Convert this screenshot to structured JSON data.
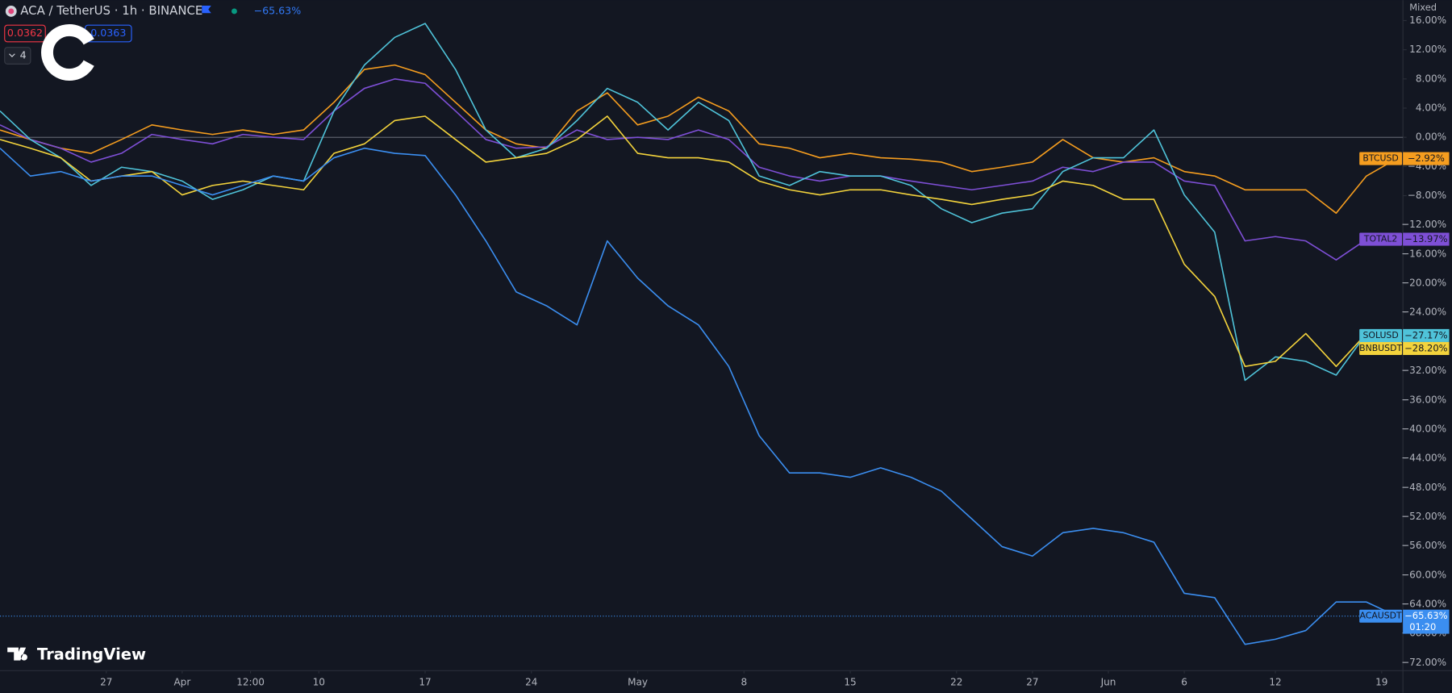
{
  "chart_data": {
    "type": "line",
    "title": "ACA / TetherUS · 1h · BINANCE",
    "change_label": "−65.63%",
    "bid": "0.0362",
    "ask": "0.0363",
    "indicator_count": "4",
    "scale_mode": "Mixed",
    "brand": "TradingView",
    "countdown": "01:20",
    "x": [
      0,
      2,
      4,
      6,
      8,
      10,
      12,
      14,
      16,
      18,
      20,
      22,
      24,
      26,
      28,
      30,
      32,
      34,
      36,
      38,
      40,
      42,
      44,
      46,
      48,
      50,
      52,
      54,
      56,
      58,
      60,
      62,
      64,
      66,
      68,
      70,
      72,
      74,
      76,
      78,
      80,
      82,
      84,
      86,
      88,
      90,
      92
    ],
    "xlim": [
      0,
      92.4
    ],
    "xticks": [
      {
        "value": 7,
        "label": "27"
      },
      {
        "value": 12,
        "label": "Apr"
      },
      {
        "value": 16.5,
        "label": "12:00"
      },
      {
        "value": 21,
        "label": "10"
      },
      {
        "value": 28,
        "label": "17"
      },
      {
        "value": 35,
        "label": "24"
      },
      {
        "value": 42,
        "label": "May"
      },
      {
        "value": 49,
        "label": "8"
      },
      {
        "value": 56,
        "label": "15"
      },
      {
        "value": 63,
        "label": "22"
      },
      {
        "value": 68,
        "label": "27"
      },
      {
        "value": 73,
        "label": "Jun"
      },
      {
        "value": 78,
        "label": "6"
      },
      {
        "value": 84,
        "label": "12"
      },
      {
        "value": 91,
        "label": "19"
      }
    ],
    "ylim": [
      -73.1,
      18.8
    ],
    "yticks": [
      {
        "value": 16,
        "label": "16.00%"
      },
      {
        "value": 12,
        "label": "12.00%"
      },
      {
        "value": 8,
        "label": "8.00%"
      },
      {
        "value": 4,
        "label": "4.00%"
      },
      {
        "value": 0,
        "label": "0.00%"
      },
      {
        "value": -4,
        "label": "−4.00%"
      },
      {
        "value": -8,
        "label": "−8.00%"
      },
      {
        "value": -12,
        "label": "−12.00%"
      },
      {
        "value": -16,
        "label": "−16.00%"
      },
      {
        "value": -20,
        "label": "−20.00%"
      },
      {
        "value": -24,
        "label": "−24.00%"
      },
      {
        "value": -28,
        "label": "−28.00%"
      },
      {
        "value": -32,
        "label": "−32.00%"
      },
      {
        "value": -36,
        "label": "−36.00%"
      },
      {
        "value": -40,
        "label": "−40.00%"
      },
      {
        "value": -44,
        "label": "−44.00%"
      },
      {
        "value": -48,
        "label": "−48.00%"
      },
      {
        "value": -52,
        "label": "−52.00%"
      },
      {
        "value": -56,
        "label": "−56.00%"
      },
      {
        "value": -60,
        "label": "−60.00%"
      },
      {
        "value": -64,
        "label": "−64.00%"
      },
      {
        "value": -68,
        "label": "−68.00%"
      },
      {
        "value": -72,
        "label": "−72.00%"
      }
    ],
    "series": [
      {
        "name": "BTCUSD",
        "color": "#f59d1f",
        "last_label": "−2.92%",
        "values": [
          1,
          -0.3,
          -1.5,
          -2.2,
          -0.3,
          1.7,
          1,
          0.4,
          1,
          0.4,
          1,
          4.8,
          9.3,
          9.9,
          8.6,
          4.8,
          1,
          -0.9,
          -1.5,
          3.6,
          6.1,
          1.7,
          2.9,
          5.5,
          3.6,
          -0.9,
          -1.5,
          -2.8,
          -2.2,
          -2.8,
          -3,
          -3.4,
          -4.7,
          -4.1,
          -3.4,
          -0.3,
          -2.8,
          -3.4,
          -2.8,
          -4.7,
          -5.3,
          -7.2,
          -7.2,
          -7.2,
          -10.4,
          -5.3,
          -2.92
        ]
      },
      {
        "name": "TOTAL2",
        "color": "#7e4fd6",
        "last_label": "−13.97%",
        "values": [
          1.7,
          -0.3,
          -1.5,
          -3.4,
          -2.2,
          0.4,
          -0.3,
          -0.9,
          0.4,
          0,
          -0.3,
          3.6,
          6.7,
          8,
          7.4,
          3.6,
          -0.3,
          -1.5,
          -1.3,
          1,
          -0.3,
          0,
          -0.3,
          1,
          -0.3,
          -4.1,
          -5.3,
          -6,
          -5.3,
          -5.3,
          -6,
          -6.6,
          -7.2,
          -6.6,
          -6,
          -4.1,
          -4.7,
          -3.4,
          -3.4,
          -6,
          -6.6,
          -14.2,
          -13.6,
          -14.2,
          -16.8,
          -14,
          -13.97
        ]
      },
      {
        "name": "SOLUSD",
        "color": "#4fc3d9",
        "last_label": "−27.17%",
        "values": [
          3.6,
          -0.3,
          -2.8,
          -6.6,
          -4.1,
          -4.7,
          -6,
          -8.5,
          -7.2,
          -5.3,
          -6,
          3.6,
          9.9,
          13.7,
          15.6,
          9.3,
          1,
          -2.8,
          -1.5,
          2.3,
          6.7,
          4.8,
          1,
          4.8,
          2.3,
          -5.3,
          -6.6,
          -4.7,
          -5.3,
          -5.3,
          -6.6,
          -9.8,
          -11.7,
          -10.4,
          -9.8,
          -4.7,
          -2.8,
          -2.8,
          1,
          -7.9,
          -13,
          -33.3,
          -30.1,
          -30.7,
          -32.6,
          -26.9,
          -27.17
        ]
      },
      {
        "name": "BNBUSDT",
        "color": "#f3d33c",
        "last_label": "−28.20%",
        "values": [
          -0.3,
          -1.5,
          -2.8,
          -6,
          -5.3,
          -4.7,
          -7.9,
          -6.6,
          -6,
          -6.6,
          -7.2,
          -2.2,
          -0.9,
          2.3,
          2.9,
          -0.3,
          -3.4,
          -2.8,
          -2.2,
          -0.3,
          2.9,
          -2.2,
          -2.8,
          -2.8,
          -3.4,
          -6,
          -7.2,
          -7.9,
          -7.2,
          -7.2,
          -7.9,
          -8.5,
          -9.2,
          -8.5,
          -7.9,
          -6,
          -6.6,
          -8.5,
          -8.5,
          -17.4,
          -21.8,
          -31.4,
          -30.7,
          -26.9,
          -31.4,
          -26.9,
          -28.2
        ]
      },
      {
        "name": "ACAUSDT",
        "color": "#3b8ef0",
        "last_label": "−65.63%",
        "values": [
          -1.5,
          -5.3,
          -4.7,
          -6,
          -5.3,
          -5.3,
          -6.6,
          -7.9,
          -6.6,
          -5.3,
          -6,
          -2.8,
          -1.5,
          -2.2,
          -2.5,
          -7.9,
          -14.2,
          -21.2,
          -23.1,
          -25.7,
          -14.2,
          -19.3,
          -23.1,
          -25.7,
          -31.4,
          -40.9,
          -46,
          -46,
          -46.6,
          -45.3,
          -46.6,
          -48.5,
          -52.3,
          -56.1,
          -57.4,
          -54.2,
          -53.6,
          -54.2,
          -55.5,
          -62.5,
          -63.1,
          -69.5,
          -68.8,
          -67.6,
          -63.7,
          -63.7,
          -65.63
        ]
      }
    ]
  }
}
